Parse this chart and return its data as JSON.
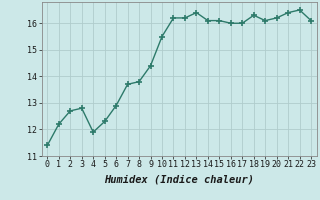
{
  "x": [
    0,
    1,
    2,
    3,
    4,
    5,
    6,
    7,
    8,
    9,
    10,
    11,
    12,
    13,
    14,
    15,
    16,
    17,
    18,
    19,
    20,
    21,
    22,
    23
  ],
  "y": [
    11.4,
    12.2,
    12.7,
    12.8,
    11.9,
    12.3,
    12.9,
    13.7,
    13.8,
    14.4,
    15.5,
    16.2,
    16.2,
    16.4,
    16.1,
    16.1,
    16.0,
    16.0,
    16.3,
    16.1,
    16.2,
    16.4,
    16.5,
    16.1
  ],
  "xlabel": "Humidex (Indice chaleur)",
  "line_color": "#2d7a6a",
  "marker_color": "#2d7a6a",
  "bg_color": "#cce8e8",
  "grid_color": "#b0cccc",
  "text_color": "#1a1a1a",
  "xlim": [
    -0.5,
    23.5
  ],
  "ylim": [
    11,
    16.8
  ],
  "yticks": [
    11,
    12,
    13,
    14,
    15,
    16
  ],
  "xtick_labels": [
    "0",
    "1",
    "2",
    "3",
    "4",
    "5",
    "6",
    "7",
    "8",
    "9",
    "10",
    "11",
    "12",
    "13",
    "14",
    "15",
    "16",
    "17",
    "18",
    "19",
    "20",
    "21",
    "22",
    "23"
  ],
  "marker_size": 4,
  "line_width": 1.0,
  "xlabel_fontsize": 7.5,
  "tick_fontsize": 6.0
}
